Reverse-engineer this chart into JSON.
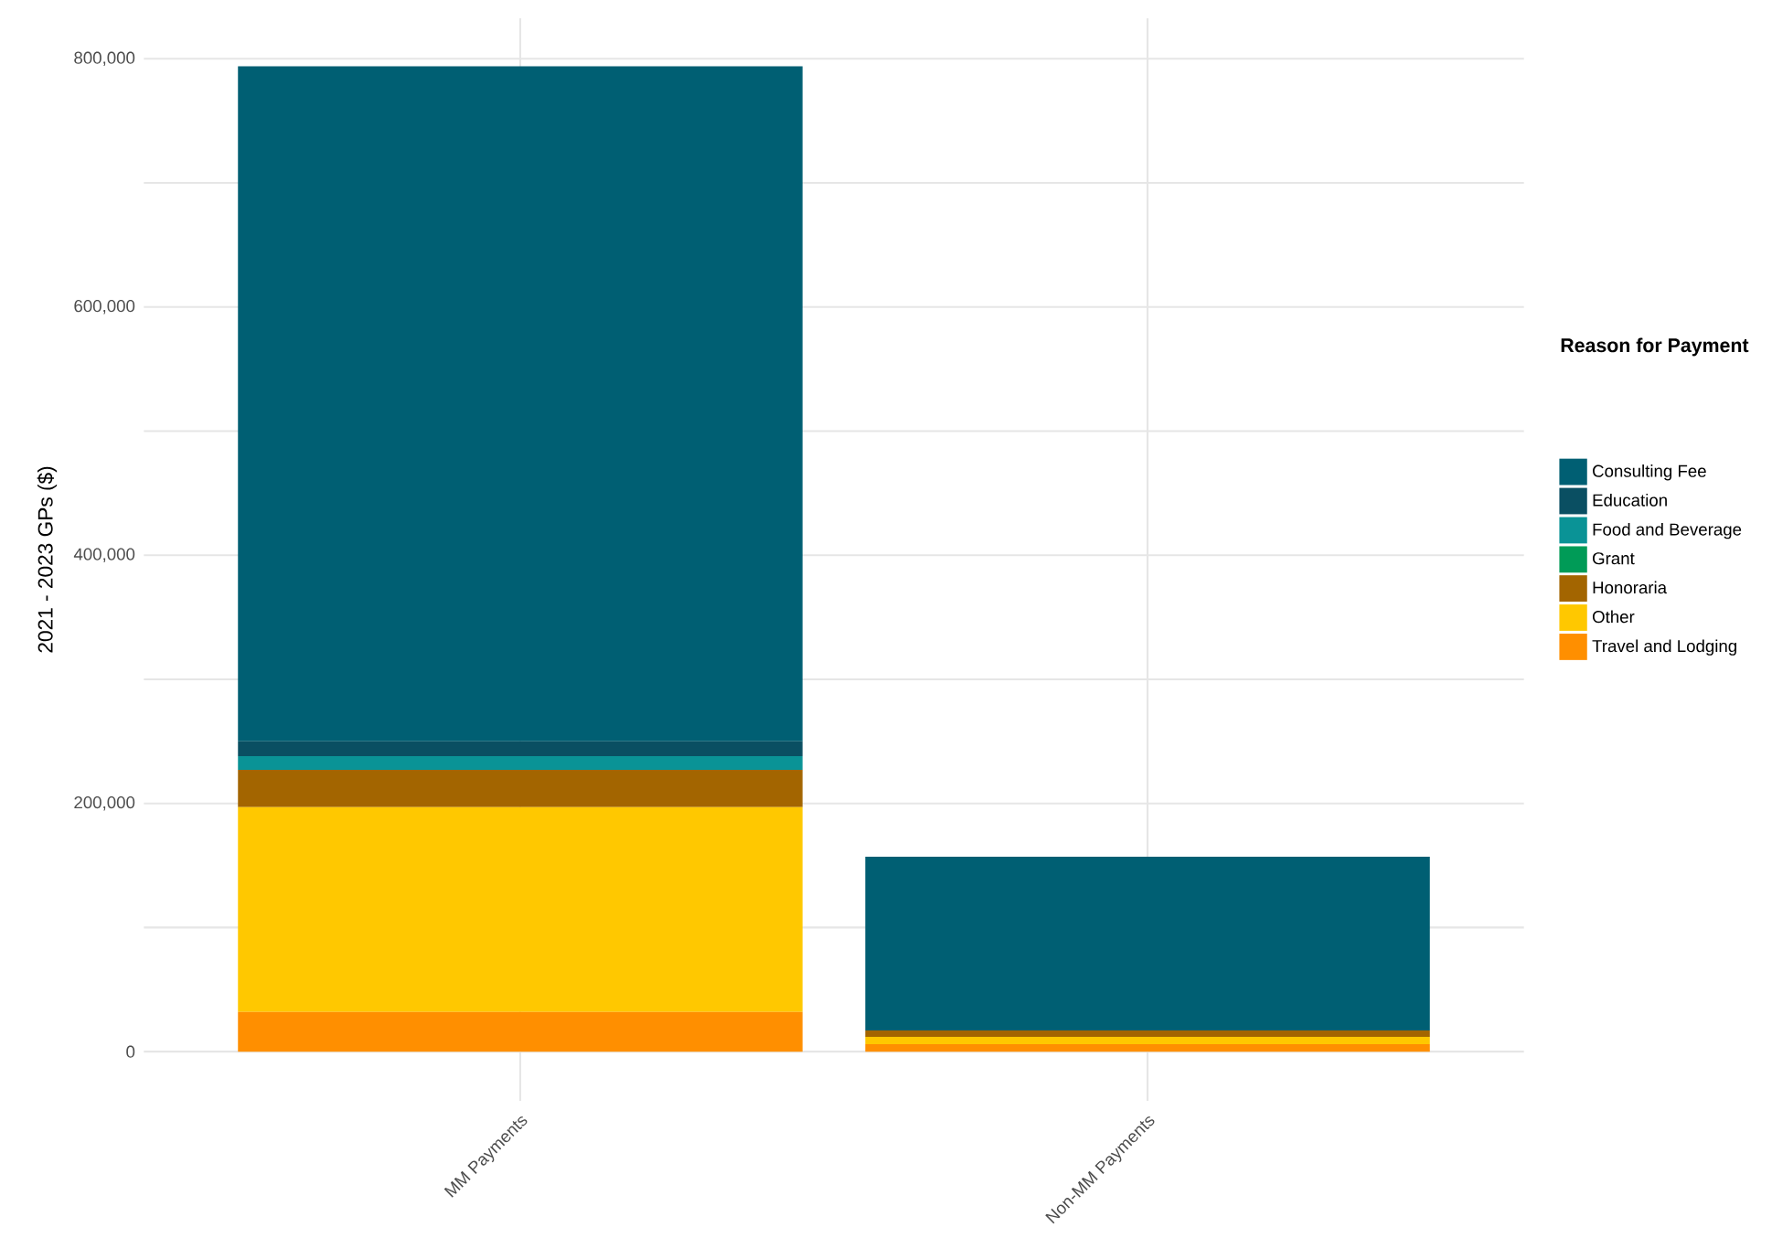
{
  "chart_data": {
    "type": "bar",
    "stacked": true,
    "categories": [
      "MM Payments",
      "Non-MM Payments"
    ],
    "ylabel": "2021 - 2023 GPs ($)",
    "legend_title": "Reason for Payment",
    "legend": "right",
    "grid": true,
    "ylim": [
      -39650,
      832650
    ],
    "yticks": [
      {
        "value": 0,
        "label": "0"
      },
      {
        "value": 100000,
        "label": null
      },
      {
        "value": 200000,
        "label": "200,000"
      },
      {
        "value": 300000,
        "label": null
      },
      {
        "value": 400000,
        "label": "400,000"
      },
      {
        "value": 500000,
        "label": null
      },
      {
        "value": 600000,
        "label": "600,000"
      },
      {
        "value": 700000,
        "label": null
      },
      {
        "value": 800000,
        "label": "800,000"
      }
    ],
    "series": [
      {
        "name": "Travel and Lodging",
        "color": "#ff8f00",
        "values": [
          32000,
          6000
        ]
      },
      {
        "name": "Other",
        "color": "#ffc800",
        "values": [
          165000,
          6000
        ]
      },
      {
        "name": "Honoraria",
        "color": "#a36500",
        "values": [
          30000,
          5000
        ]
      },
      {
        "name": "Grant",
        "color": "#009b57",
        "values": [
          0,
          0
        ]
      },
      {
        "name": "Food and Beverage",
        "color": "#0a9396",
        "values": [
          11000,
          0
        ]
      },
      {
        "name": "Education",
        "color": "#0a4f62",
        "values": [
          12000,
          0
        ]
      },
      {
        "name": "Consulting Fee",
        "color": "#005f73",
        "values": [
          544000,
          140000
        ]
      }
    ]
  }
}
